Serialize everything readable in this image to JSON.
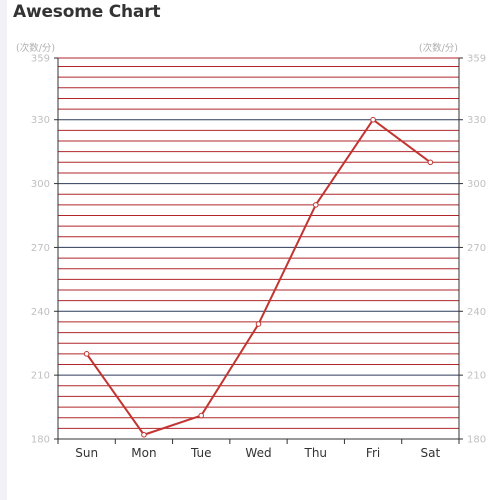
{
  "chart_data": {
    "type": "line",
    "title": "Awesome Chart",
    "categories": [
      "Sun",
      "Mon",
      "Tue",
      "Wed",
      "Thu",
      "Fri",
      "Sat"
    ],
    "series": [
      {
        "values": [
          220,
          182,
          191,
          234,
          290,
          330,
          310
        ]
      }
    ],
    "ylim": [
      180,
      359
    ],
    "y_ticks": [
      180,
      210,
      240,
      270,
      300,
      330,
      359
    ],
    "y_unit_left": "(次数/分)",
    "y_unit_right": "(次数/分)",
    "grid": true,
    "legend": "none",
    "colors": {
      "line": "#c23531",
      "grid_minor": "#b0262b",
      "grid_major": "#2d3a5a",
      "axis": "#333333",
      "tick_text": "#c0c0c0"
    }
  }
}
